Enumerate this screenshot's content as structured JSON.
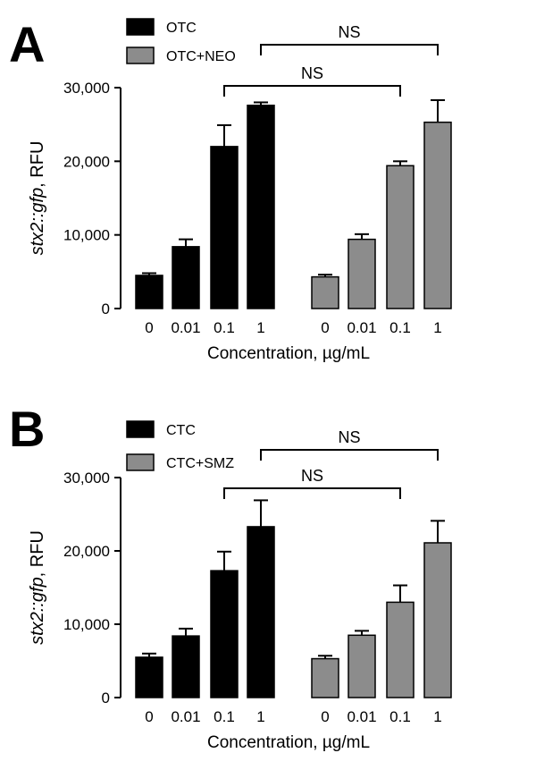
{
  "panels": [
    {
      "letter": "A",
      "ylabel_italic": "stx2::gfp",
      "ylabel_rest": ", RFU",
      "xlabel": "Concentration, µg/mL",
      "legend": [
        "OTC",
        "OTC+NEO"
      ],
      "significance": [
        "NS",
        "NS"
      ]
    },
    {
      "letter": "B",
      "ylabel_italic": "stx2::gfp",
      "ylabel_rest": ", RFU",
      "xlabel": "Concentration, µg/mL",
      "legend": [
        "CTC",
        "CTC+SMZ"
      ],
      "significance": [
        "NS",
        "NS"
      ]
    }
  ],
  "chart_data": [
    {
      "type": "bar",
      "ylabel": "stx2::gfp, RFU",
      "xlabel": "Concentration, µg/mL",
      "ylim": [
        0,
        30000
      ],
      "yticks": [
        0,
        10000,
        20000,
        30000
      ],
      "ytick_labels": [
        "0",
        "10,000",
        "20,000",
        "30,000"
      ],
      "categories": [
        "0",
        "0.01",
        "0.1",
        "1"
      ],
      "series": [
        {
          "name": "OTC",
          "color": "#000000",
          "values": [
            4500,
            8400,
            22000,
            27600
          ],
          "errors": [
            300,
            1000,
            2900,
            400
          ]
        },
        {
          "name": "OTC+NEO",
          "color": "#8c8c8c",
          "values": [
            4300,
            9400,
            19400,
            25300
          ],
          "errors": [
            300,
            700,
            600,
            3000
          ]
        }
      ],
      "legend_position": "top-left",
      "annotations": [
        {
          "text": "NS",
          "from": "OTC 0.1",
          "to": "OTC+NEO 0.1"
        },
        {
          "text": "NS",
          "from": "OTC 1",
          "to": "OTC+NEO 1"
        }
      ]
    },
    {
      "type": "bar",
      "ylabel": "stx2::gfp, RFU",
      "xlabel": "Concentration, µg/mL",
      "ylim": [
        0,
        30000
      ],
      "yticks": [
        0,
        10000,
        20000,
        30000
      ],
      "ytick_labels": [
        "0",
        "10,000",
        "20,000",
        "30,000"
      ],
      "categories": [
        "0",
        "0.01",
        "0.1",
        "1"
      ],
      "series": [
        {
          "name": "CTC",
          "color": "#000000",
          "values": [
            5500,
            8400,
            17300,
            23300
          ],
          "errors": [
            500,
            1000,
            2600,
            3600
          ]
        },
        {
          "name": "CTC+SMZ",
          "color": "#8c8c8c",
          "values": [
            5300,
            8500,
            13000,
            21100
          ],
          "errors": [
            400,
            600,
            2300,
            3000
          ]
        }
      ],
      "legend_position": "top-left",
      "annotations": [
        {
          "text": "NS",
          "from": "CTC 0.1",
          "to": "CTC+SMZ 0.1"
        },
        {
          "text": "NS",
          "from": "CTC 1",
          "to": "CTC+SMZ 1"
        }
      ]
    }
  ]
}
